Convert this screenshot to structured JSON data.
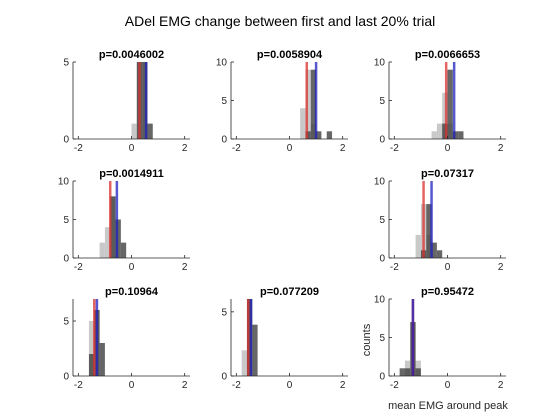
{
  "figure": {
    "title": "ADel EMG change between first and last 20% trial",
    "xlabel": "mean EMG around peak",
    "ylabel": "counts"
  },
  "colors": {
    "first_hist": "#bfbfbf",
    "last_hist": "#404040",
    "first_mean_line": "#d9302b",
    "last_mean_line": "#1f1fbf",
    "axis": "#262626"
  },
  "chart_data": [
    {
      "type": "bar",
      "title": "p=0.0046002",
      "xlim": [
        -2.2,
        2.2
      ],
      "ylim": [
        0,
        5
      ],
      "xticks": [
        -2,
        0,
        2
      ],
      "yticks": [
        0,
        5
      ],
      "ytick_labels": [
        "0",
        "5"
      ],
      "xtick_labels": [
        "-2",
        "0",
        "2"
      ],
      "bin_width": 0.2,
      "series": [
        {
          "bins": [
            {
              "x": 0.1,
              "count": 1
            },
            {
              "x": 0.3,
              "count": 5
            },
            {
              "x": 0.5,
              "count": 5
            }
          ]
        },
        {
          "bins": [
            {
              "x": 0.3,
              "count": 5
            },
            {
              "x": 0.5,
              "count": 5
            },
            {
              "x": 0.7,
              "count": 1
            }
          ]
        }
      ],
      "mean_lines": [
        0.3,
        0.55
      ]
    },
    {
      "type": "bar",
      "title": "p=0.0058904",
      "xlim": [
        -2.2,
        2.2
      ],
      "ylim": [
        0,
        10
      ],
      "xticks": [
        -2,
        0,
        2
      ],
      "yticks": [
        0,
        5,
        10
      ],
      "ytick_labels": [
        "0",
        "5",
        "10"
      ],
      "xtick_labels": [
        "-2",
        "0",
        "2"
      ],
      "bin_width": 0.2,
      "series": [
        {
          "bins": [
            {
              "x": 0.5,
              "count": 4
            },
            {
              "x": 0.7,
              "count": 9
            },
            {
              "x": 0.9,
              "count": 2
            }
          ]
        },
        {
          "bins": [
            {
              "x": 0.7,
              "count": 1
            },
            {
              "x": 0.9,
              "count": 9
            },
            {
              "x": 1.1,
              "count": 1
            },
            {
              "x": 1.5,
              "count": 1
            }
          ]
        }
      ],
      "mean_lines": [
        0.65,
        1.0
      ]
    },
    {
      "type": "bar",
      "title": "p=0.0066653",
      "xlim": [
        -2.2,
        2.2
      ],
      "ylim": [
        0,
        10
      ],
      "xticks": [
        -2,
        0,
        2
      ],
      "yticks": [
        0,
        5,
        10
      ],
      "ytick_labels": [
        "0",
        "5",
        "10"
      ],
      "xtick_labels": [
        "-2",
        "0",
        "2"
      ],
      "bin_width": 0.2,
      "series": [
        {
          "bins": [
            {
              "x": -0.5,
              "count": 1
            },
            {
              "x": -0.3,
              "count": 2
            },
            {
              "x": -0.1,
              "count": 6
            },
            {
              "x": 0.1,
              "count": 2
            }
          ]
        },
        {
          "bins": [
            {
              "x": -0.1,
              "count": 2
            },
            {
              "x": 0.1,
              "count": 9
            },
            {
              "x": 0.3,
              "count": 1
            },
            {
              "x": 0.5,
              "count": 1
            }
          ]
        }
      ],
      "mean_lines": [
        -0.05,
        0.25
      ]
    },
    {
      "type": "bar",
      "title": "p=0.0014911",
      "xlim": [
        -2.2,
        2.2
      ],
      "ylim": [
        0,
        10
      ],
      "xticks": [
        -2,
        0,
        2
      ],
      "yticks": [
        0,
        5,
        10
      ],
      "ytick_labels": [
        "0",
        "5",
        "10"
      ],
      "xtick_labels": [
        "-2",
        "0",
        "2"
      ],
      "bin_width": 0.2,
      "series": [
        {
          "bins": [
            {
              "x": -1.1,
              "count": 2
            },
            {
              "x": -0.9,
              "count": 4
            },
            {
              "x": -0.7,
              "count": 8
            }
          ]
        },
        {
          "bins": [
            {
              "x": -0.7,
              "count": 8
            },
            {
              "x": -0.5,
              "count": 5
            },
            {
              "x": -0.3,
              "count": 2
            }
          ]
        }
      ],
      "mean_lines": [
        -0.8,
        -0.55
      ]
    },
    null,
    {
      "type": "bar",
      "title": "p=0.07317",
      "xlim": [
        -2.2,
        2.2
      ],
      "ylim": [
        0,
        10
      ],
      "xticks": [
        -2,
        0,
        2
      ],
      "yticks": [
        0,
        5,
        10
      ],
      "ytick_labels": [
        "0",
        "5",
        "10"
      ],
      "xtick_labels": [
        "-2",
        "0",
        "2"
      ],
      "bin_width": 0.2,
      "series": [
        {
          "bins": [
            {
              "x": -1.1,
              "count": 3
            },
            {
              "x": -0.9,
              "count": 7
            },
            {
              "x": -0.7,
              "count": 3
            }
          ]
        },
        {
          "bins": [
            {
              "x": -0.9,
              "count": 1
            },
            {
              "x": -0.7,
              "count": 7
            },
            {
              "x": -0.5,
              "count": 2
            },
            {
              "x": -0.3,
              "count": 1
            }
          ]
        }
      ],
      "mean_lines": [
        -0.9,
        -0.6
      ]
    },
    {
      "type": "bar",
      "title": "p=0.10964",
      "xlim": [
        -2.2,
        2.2
      ],
      "ylim": [
        0,
        7
      ],
      "xticks": [
        -2,
        0,
        2
      ],
      "yticks": [
        0,
        5
      ],
      "ytick_labels": [
        "0",
        "5"
      ],
      "xtick_labels": [
        "-2",
        "0",
        "2"
      ],
      "bin_width": 0.2,
      "series": [
        {
          "bins": [
            {
              "x": -1.5,
              "count": 5
            },
            {
              "x": -1.3,
              "count": 6
            }
          ]
        },
        {
          "bins": [
            {
              "x": -1.5,
              "count": 2
            },
            {
              "x": -1.3,
              "count": 6
            },
            {
              "x": -1.1,
              "count": 3
            }
          ]
        }
      ],
      "mean_lines": [
        -1.4,
        -1.3
      ]
    },
    {
      "type": "bar",
      "title": "p=0.077209",
      "xlim": [
        -2.2,
        2.2
      ],
      "ylim": [
        0,
        6
      ],
      "xticks": [
        -2,
        0,
        2
      ],
      "yticks": [
        0,
        5
      ],
      "ytick_labels": [
        "0",
        "5"
      ],
      "xtick_labels": [
        "-2",
        "0",
        "2"
      ],
      "bin_width": 0.2,
      "series": [
        {
          "bins": [
            {
              "x": -1.7,
              "count": 2
            },
            {
              "x": -1.5,
              "count": 6
            }
          ]
        },
        {
          "bins": [
            {
              "x": -1.5,
              "count": 6
            },
            {
              "x": -1.3,
              "count": 4
            }
          ]
        }
      ],
      "mean_lines": [
        -1.55,
        -1.45
      ]
    },
    {
      "type": "bar",
      "title": "p=0.95472",
      "xlim": [
        -2.2,
        2.2
      ],
      "ylim": [
        0,
        10
      ],
      "xticks": [
        -2,
        0,
        2
      ],
      "yticks": [
        0,
        5,
        10
      ],
      "ytick_labels": [
        "0",
        "5",
        "10"
      ],
      "xtick_labels": [
        "-2",
        "0",
        "2"
      ],
      "bin_width": 0.2,
      "series": [
        {
          "bins": [
            {
              "x": -1.5,
              "count": 2
            },
            {
              "x": -1.3,
              "count": 7
            },
            {
              "x": -1.1,
              "count": 2
            }
          ]
        },
        {
          "bins": [
            {
              "x": -1.7,
              "count": 1
            },
            {
              "x": -1.5,
              "count": 1
            },
            {
              "x": -1.3,
              "count": 7
            },
            {
              "x": -1.1,
              "count": 1
            }
          ]
        }
      ],
      "mean_lines": [
        -1.3,
        -1.3
      ]
    }
  ]
}
